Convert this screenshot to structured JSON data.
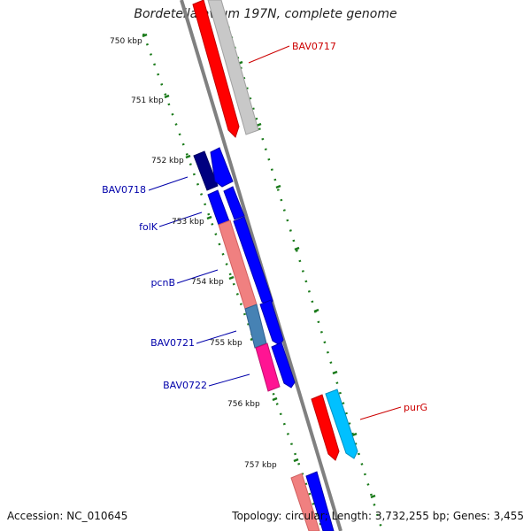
{
  "title": "Bordetella avium 197N, complete genome",
  "footer": {
    "accession_label": "Accession:",
    "accession": "NC_010645",
    "topology_label": "Topology:",
    "topology": "circular;",
    "length_label": "Length:",
    "length": "3,732,255 bp;",
    "genes_label": "Genes:",
    "genes": "3,455"
  },
  "ticks": [
    {
      "label": "750 kbp"
    },
    {
      "label": "751 kbp"
    },
    {
      "label": "752 kbp"
    },
    {
      "label": "753 kbp"
    },
    {
      "label": "754 kbp"
    },
    {
      "label": "755 kbp"
    },
    {
      "label": "756 kbp"
    },
    {
      "label": "757 kbp"
    }
  ],
  "genes": [
    {
      "name": "BAV0717",
      "color": "#cc0000"
    },
    {
      "name": "BAV0718",
      "color": "#0000aa"
    },
    {
      "name": "folK",
      "color": "#0000aa"
    },
    {
      "name": "pcnB",
      "color": "#0000aa"
    },
    {
      "name": "BAV0721",
      "color": "#0000aa"
    },
    {
      "name": "BAV0722",
      "color": "#0000aa"
    },
    {
      "name": "purG",
      "color": "#cc0000"
    }
  ],
  "colors": {
    "backbone": "#808080",
    "tick_dots": "#1a7a1a",
    "red": "#ff0000",
    "grey": "#c8c8c8",
    "navy": "#000080",
    "blue": "#0000ff",
    "salmon": "#f08080",
    "steel": "#4682b4",
    "magenta": "#ff1493",
    "cyan": "#00c0ff"
  }
}
